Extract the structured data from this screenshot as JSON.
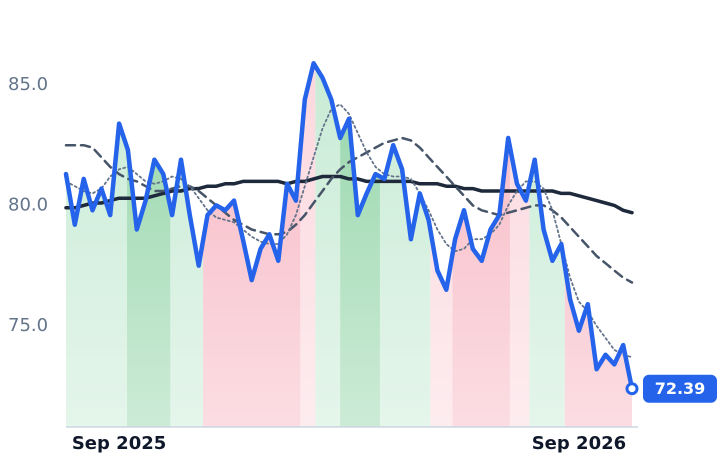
{
  "chart_data": {
    "type": "line",
    "categories": [
      null,
      null,
      null,
      null,
      null,
      null,
      "Sep 2025",
      null,
      null,
      null,
      null,
      null,
      null,
      null,
      null,
      null,
      null,
      null,
      null,
      null,
      null,
      null,
      null,
      null,
      null,
      null,
      null,
      null,
      null,
      null,
      null,
      null,
      null,
      null,
      null,
      null,
      null,
      null,
      null,
      null,
      null,
      null,
      null,
      null,
      null,
      null,
      null,
      null,
      null,
      null,
      null,
      null,
      null,
      null,
      null,
      null,
      null,
      null,
      "Sep 2026",
      null,
      null,
      null,
      null,
      null,
      null
    ],
    "ylim": [
      70.8,
      87.7
    ],
    "yticks": [
      {
        "value": 75,
        "label": "75.0"
      },
      {
        "value": 80,
        "label": "80.0"
      },
      {
        "value": 85,
        "label": "85.0"
      }
    ],
    "regions": [
      {
        "from": 0,
        "to": 6.9,
        "color": "#c5ead3"
      },
      {
        "from": 6.9,
        "to": 11.8,
        "color": "#8fd3a5"
      },
      {
        "from": 11.8,
        "to": 15.5,
        "color": "#c5ead3"
      },
      {
        "from": 15.5,
        "to": 26.5,
        "color": "#f7b3c0"
      },
      {
        "from": 26.5,
        "to": 28.2,
        "color": "#fbd5dc"
      },
      {
        "from": 28.2,
        "to": 31,
        "color": "#c5ead3"
      },
      {
        "from": 31,
        "to": 35.5,
        "color": "#8fd3a5"
      },
      {
        "from": 35.5,
        "to": 41.2,
        "color": "#c5ead3"
      },
      {
        "from": 41.2,
        "to": 43.7,
        "color": "#fbd5dc"
      },
      {
        "from": 43.7,
        "to": 50.2,
        "color": "#f7b3c0"
      },
      {
        "from": 50.2,
        "to": 52.4,
        "color": "#fbd5dc"
      },
      {
        "from": 52.4,
        "to": 56.4,
        "color": "#c5ead3"
      },
      {
        "from": 56.4,
        "to": 64,
        "color": "#f7b3c0"
      }
    ],
    "series": [
      {
        "color": "#1e293b",
        "style": "solid",
        "width": 3.5,
        "values": [
          79.9,
          79.9,
          80.0,
          80.1,
          80.1,
          80.2,
          80.3,
          80.3,
          80.3,
          80.3,
          80.4,
          80.5,
          80.6,
          80.6,
          80.7,
          80.7,
          80.8,
          80.8,
          80.9,
          80.9,
          81.0,
          81.0,
          81.0,
          81.0,
          81.0,
          80.9,
          81.0,
          81.0,
          81.1,
          81.2,
          81.2,
          81.2,
          81.1,
          81.1,
          81.0,
          81.0,
          81.0,
          81.0,
          81.0,
          81.0,
          80.9,
          80.9,
          80.9,
          80.8,
          80.8,
          80.7,
          80.7,
          80.6,
          80.6,
          80.6,
          80.6,
          80.6,
          80.6,
          80.6,
          80.6,
          80.6,
          80.5,
          80.5,
          80.4,
          80.3,
          80.2,
          80.1,
          80.0,
          79.8,
          79.7
        ]
      },
      {
        "color": "#475569",
        "style": "dashed",
        "width": 2.5,
        "values": [
          82.5,
          82.5,
          82.5,
          82.4,
          82.0,
          81.6,
          81.3,
          81.1,
          81.0,
          80.8,
          80.6,
          80.6,
          80.7,
          80.8,
          80.8,
          80.6,
          80.3,
          80.0,
          79.7,
          79.4,
          79.2,
          79.0,
          78.9,
          78.8,
          78.8,
          78.9,
          79.2,
          79.6,
          80.1,
          80.6,
          81.1,
          81.5,
          81.8,
          82.0,
          82.2,
          82.4,
          82.6,
          82.7,
          82.8,
          82.7,
          82.4,
          82.0,
          81.6,
          81.2,
          80.8,
          80.4,
          80.0,
          79.8,
          79.7,
          79.6,
          79.7,
          79.8,
          79.9,
          80.0,
          80.0,
          79.8,
          79.5,
          79.1,
          78.7,
          78.3,
          77.9,
          77.6,
          77.3,
          77.0,
          76.8
        ]
      },
      {
        "color": "#64748b",
        "style": "dotted",
        "width": 1.8,
        "values": [
          81.0,
          80.8,
          80.6,
          80.5,
          80.7,
          81.2,
          81.5,
          81.6,
          81.3,
          81.0,
          80.9,
          81.0,
          81.2,
          81.1,
          80.8,
          80.3,
          79.8,
          79.5,
          79.4,
          79.3,
          79.0,
          78.7,
          78.5,
          78.4,
          78.4,
          78.8,
          79.6,
          80.8,
          82.0,
          83.2,
          84.0,
          84.2,
          83.8,
          83.0,
          82.2,
          81.6,
          81.3,
          81.2,
          81.2,
          81.1,
          80.5,
          79.8,
          79.0,
          78.4,
          78.1,
          78.2,
          78.6,
          78.6,
          78.8,
          79.2,
          80.0,
          80.6,
          81.0,
          81.0,
          80.7,
          79.8,
          78.4,
          77.0,
          76.0,
          75.6,
          75.0,
          74.5,
          74.0,
          73.8,
          73.7
        ]
      },
      {
        "color": "#2563eb",
        "style": "solid",
        "width": 4.5,
        "fill_regions": true,
        "values": [
          81.3,
          79.2,
          81.1,
          79.8,
          80.7,
          79.6,
          83.4,
          82.3,
          79.0,
          80.2,
          81.9,
          81.3,
          79.6,
          81.9,
          79.6,
          77.5,
          79.6,
          80.0,
          79.8,
          80.2,
          78.6,
          76.9,
          78.2,
          78.8,
          77.7,
          80.9,
          80.2,
          84.4,
          85.9,
          85.3,
          84.4,
          82.8,
          83.6,
          79.6,
          80.5,
          81.3,
          81.1,
          82.5,
          81.5,
          78.6,
          80.5,
          79.4,
          77.3,
          76.5,
          78.6,
          79.8,
          78.2,
          77.7,
          79.0,
          79.6,
          82.8,
          80.9,
          80.2,
          81.9,
          79.0,
          77.7,
          78.4,
          76.1,
          74.8,
          75.9,
          73.2,
          73.8,
          73.4,
          74.2,
          72.39
        ],
        "value_labels": [
          null,
          null,
          null,
          null,
          null,
          null,
          null,
          null,
          null,
          null,
          null,
          null,
          null,
          null,
          null,
          null,
          null,
          null,
          null,
          null,
          null,
          null,
          null,
          null,
          null,
          null,
          null,
          null,
          null,
          null,
          null,
          null,
          null,
          null,
          null,
          null,
          null,
          null,
          null,
          null,
          null,
          null,
          null,
          null,
          null,
          null,
          null,
          null,
          null,
          null,
          null,
          null,
          null,
          null,
          null,
          null,
          null,
          null,
          null,
          null,
          null,
          null,
          null,
          null,
          "72.39"
        ]
      }
    ]
  }
}
